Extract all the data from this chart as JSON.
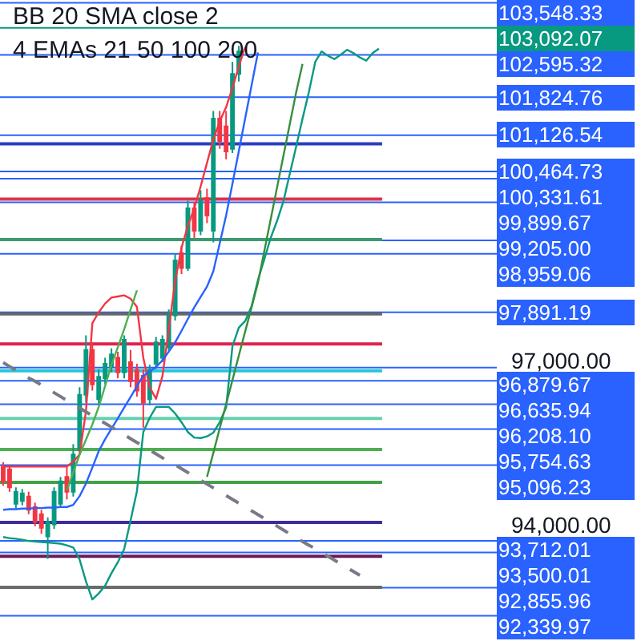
{
  "chart_data": {
    "type": "candlestick",
    "categories": [
      null,
      null,
      null,
      null,
      null,
      null,
      null,
      null,
      null,
      null,
      null,
      null,
      null,
      null,
      null,
      null,
      null,
      null,
      null,
      null,
      null,
      null,
      null,
      null,
      null,
      null,
      null,
      null,
      null,
      null,
      null,
      null,
      null,
      null,
      null,
      null,
      null,
      null,
      null,
      null,
      null,
      null,
      null,
      null,
      null,
      null,
      null,
      null,
      null,
      null,
      null,
      null,
      null,
      null,
      null,
      null,
      null,
      null,
      null,
      null
    ],
    "ohlc": [
      [
        95070,
        95150,
        94720,
        94800
      ],
      [
        95020,
        95070,
        94610,
        94690
      ],
      [
        94390,
        94690,
        94300,
        94610
      ],
      [
        94440,
        94660,
        94360,
        94580
      ],
      [
        94520,
        94610,
        94200,
        94280
      ],
      [
        94330,
        94410,
        93980,
        94060
      ],
      [
        94200,
        94280,
        93840,
        93950
      ],
      [
        93790,
        94140,
        93380,
        94060
      ],
      [
        94010,
        94690,
        93930,
        94610
      ],
      [
        94390,
        94880,
        94330,
        94800
      ],
      [
        94880,
        95070,
        94470,
        94610
      ],
      [
        94610,
        95480,
        94520,
        95290
      ],
      [
        95370,
        96520,
        95290,
        96380
      ],
      [
        96380,
        97470,
        96240,
        97200
      ],
      [
        97200,
        97340,
        96460,
        96570
      ],
      [
        96300,
        96850,
        96190,
        96710
      ],
      [
        96680,
        97060,
        96570,
        96950
      ],
      [
        96900,
        97230,
        96790,
        97120
      ],
      [
        97060,
        97170,
        96680,
        96790
      ],
      [
        96790,
        97470,
        96680,
        97390
      ],
      [
        96980,
        97200,
        96520,
        96630
      ],
      [
        96840,
        96950,
        96350,
        96460
      ],
      [
        96730,
        96850,
        95780,
        96240
      ],
      [
        96300,
        96930,
        96190,
        96840
      ],
      [
        96950,
        97440,
        96850,
        97340
      ],
      [
        97060,
        97470,
        96980,
        97390
      ],
      [
        97250,
        97940,
        97170,
        97830
      ],
      [
        97830,
        98970,
        97740,
        98840
      ],
      [
        98970,
        99110,
        98590,
        98700
      ],
      [
        98700,
        99930,
        98650,
        99790
      ],
      [
        99790,
        99900,
        99250,
        99380
      ],
      [
        99380,
        100120,
        99300,
        99930
      ],
      [
        99980,
        100150,
        99520,
        99660
      ],
      [
        99380,
        101570,
        99170,
        101430
      ],
      [
        101430,
        101570,
        100880,
        101020
      ],
      [
        101290,
        101570,
        100690,
        100830
      ],
      [
        100880,
        102470,
        100800,
        102250
      ],
      [
        102250,
        102760,
        102110,
        102660
      ],
      null,
      null,
      null,
      null,
      null,
      null,
      null,
      null,
      null,
      null,
      null,
      null,
      null,
      null,
      null,
      null,
      null,
      null,
      null,
      null,
      null,
      null
    ],
    "colors": [
      "#f23645",
      "#f23645",
      "#089981",
      "#089981",
      "#f23645",
      "#f23645",
      "#f23645",
      "#089981",
      "#089981",
      "#089981",
      "#f23645",
      "#089981",
      "#089981",
      "#089981",
      "#f23645",
      "#089981",
      "#089981",
      "#089981",
      "#f23645",
      "#089981",
      "#f23645",
      "#f23645",
      "#f23645",
      "#089981",
      "#089981",
      "#089981",
      "#089981",
      "#089981",
      "#f23645",
      "#089981",
      "#f23645",
      "#089981",
      "#f23645",
      "#089981",
      "#f23645",
      "#f23645",
      "#089981",
      "#089981",
      null,
      null,
      null,
      null,
      null,
      null,
      null,
      null,
      null,
      null,
      null,
      null,
      null,
      null,
      null,
      null,
      null,
      null,
      null,
      null,
      null,
      null
    ],
    "series": [
      {
        "type": "line",
        "color": "#f23645",
        "values": [
          95070,
          95070,
          95070,
          95070,
          95070,
          95070,
          95070,
          95070,
          95070,
          95070,
          95070,
          95160,
          95290,
          96080,
          97690,
          97890,
          98050,
          98160,
          98180,
          98200,
          98140,
          97990,
          97060,
          96520,
          96310,
          96720,
          97580,
          98460,
          99070,
          99470,
          99790,
          100190,
          100620,
          101050,
          101380,
          101640,
          101990,
          102390,
          102740,
          null,
          null,
          null,
          null,
          null,
          null,
          null,
          null,
          null,
          null,
          null,
          null,
          null,
          null,
          null,
          null,
          null,
          null,
          null,
          null,
          null
        ]
      },
      {
        "type": "line",
        "color": "#2962ff",
        "values": [
          94280,
          94290,
          94290,
          94300,
          94300,
          94310,
          94310,
          94320,
          94320,
          94330,
          94330,
          94370,
          94530,
          94760,
          95050,
          95350,
          95570,
          95760,
          95950,
          96150,
          96340,
          96540,
          96730,
          96810,
          96890,
          97010,
          97170,
          97340,
          97550,
          97770,
          97980,
          98170,
          98360,
          98640,
          99150,
          99660,
          100240,
          100840,
          101440,
          102040,
          102640,
          null,
          null,
          null,
          null,
          null,
          null,
          null,
          null,
          null,
          null,
          null,
          null,
          null,
          null,
          null,
          null,
          null,
          null,
          null
        ]
      },
      {
        "type": "line",
        "color": "#089981",
        "values": [
          93780,
          93760,
          93750,
          93730,
          93710,
          93700,
          93690,
          93680,
          93670,
          93660,
          93630,
          93590,
          93370,
          92970,
          92640,
          92750,
          92890,
          93120,
          93320,
          93560,
          94080,
          94620,
          95700,
          95960,
          96160,
          96160,
          96160,
          96040,
          95880,
          95700,
          95600,
          95590,
          95620,
          95690,
          95880,
          96150,
          97270,
          97610,
          97730,
          98000,
          98480,
          98860,
          99250,
          99560,
          99920,
          100420,
          100920,
          101430,
          101920,
          102470,
          102660,
          102580,
          102520,
          102600,
          102690,
          102630,
          102550,
          102490,
          102630,
          102710
        ]
      },
      {
        "type": "line",
        "color": "#4caf50",
        "values": [
          null,
          null,
          null,
          null,
          null,
          null,
          null,
          null,
          null,
          null,
          94640,
          94960,
          95290,
          95560,
          95840,
          96160,
          96540,
          96930,
          97250,
          97580,
          97940,
          98290,
          null,
          null,
          null,
          null,
          null,
          null,
          null,
          null,
          null,
          null,
          null,
          null,
          null,
          null,
          null,
          null,
          null,
          null,
          null,
          null,
          null,
          null,
          null,
          null,
          null,
          null,
          null,
          null,
          null,
          null,
          null,
          null,
          null,
          null,
          null,
          null,
          null,
          null
        ]
      },
      {
        "type": "line",
        "color": "#388e3c",
        "values": [
          null,
          null,
          null,
          null,
          null,
          null,
          null,
          null,
          null,
          null,
          null,
          null,
          null,
          null,
          null,
          null,
          null,
          null,
          null,
          null,
          null,
          null,
          null,
          null,
          null,
          null,
          null,
          null,
          null,
          null,
          null,
          null,
          94880,
          95320,
          95770,
          96210,
          96650,
          97100,
          97540,
          97980,
          98430,
          99010,
          99590,
          100170,
          100750,
          101330,
          101910,
          102430,
          null,
          null,
          null,
          null,
          null,
          null,
          null,
          null,
          null,
          null,
          null,
          null
        ]
      },
      {
        "type": "line",
        "color": "#787b86",
        "line_style": "dashed",
        "values": [
          96970,
          96900,
          96830,
          96760,
          96690,
          96630,
          96560,
          96490,
          96420,
          96350,
          96280,
          96210,
          96140,
          96070,
          96000,
          95930,
          95860,
          95790,
          95720,
          95650,
          95580,
          95510,
          95440,
          95370,
          95300,
          95230,
          95160,
          95100,
          95030,
          94960,
          94890,
          94820,
          94750,
          94680,
          94610,
          94540,
          94470,
          94400,
          94330,
          94260,
          94190,
          94120,
          94050,
          93980,
          93910,
          93840,
          93770,
          93700,
          93630,
          93570,
          93500,
          93430,
          93360,
          93290,
          93220,
          93150,
          93080,
          null,
          null,
          null
        ]
      }
    ],
    "ref_lines": [
      {
        "axis": "y",
        "value": 103548.33,
        "label": "103,548.33",
        "color": "#2962ff"
      },
      {
        "axis": "y",
        "value": 103092.07,
        "label": "103,092.07",
        "color": "#089981"
      },
      {
        "axis": "y",
        "value": 102595.32,
        "label": "102,595.32",
        "color": "#2962ff"
      },
      {
        "axis": "y",
        "value": 101824.76,
        "label": "101,824.76",
        "color": "#2962ff"
      },
      {
        "axis": "y",
        "value": 101126.54,
        "label": "101,126.54",
        "color": "#2962ff"
      },
      {
        "axis": "y",
        "value": 100464.73,
        "label": "100,464.73",
        "color": "#2962ff"
      },
      {
        "axis": "y",
        "value": 100331.61,
        "label": "100,331.61",
        "color": "#2962ff"
      },
      {
        "axis": "y",
        "value": 99899.67,
        "label": "99,899.67",
        "color": "#2962ff"
      },
      {
        "axis": "y",
        "value": 99205.0,
        "label": "99,205.00",
        "color": "#2962ff"
      },
      {
        "axis": "y",
        "value": 98959.06,
        "label": "98,959.06",
        "color": "#2962ff"
      },
      {
        "axis": "y",
        "value": 97891.19,
        "label": "97,891.19",
        "color": "#2962ff"
      },
      {
        "axis": "y",
        "value": 96879.67,
        "label": "96,879.67",
        "color": "#2962ff"
      },
      {
        "axis": "y",
        "value": 96635.94,
        "label": "96,635.94",
        "color": "#2962ff"
      },
      {
        "axis": "y",
        "value": 96208.1,
        "label": "96,208.10",
        "color": "#2962ff"
      },
      {
        "axis": "y",
        "value": 95754.63,
        "label": "95,754.63",
        "color": "#2962ff"
      },
      {
        "axis": "y",
        "value": 95096.23,
        "label": "95,096.23",
        "color": "#2962ff"
      },
      {
        "axis": "y",
        "value": 93712.01,
        "label": "93,712.01",
        "color": "#2962ff"
      },
      {
        "axis": "y",
        "value": 93500.01,
        "label": "93,500.01",
        "color": "#2962ff"
      },
      {
        "axis": "y",
        "value": 92855.96,
        "label": "92,855.96",
        "color": "#2962ff"
      },
      {
        "axis": "y",
        "value": 92339.97,
        "label": "92,339.97",
        "color": "#2962ff"
      },
      {
        "axis": "y",
        "value": 100970,
        "color": "#2a3fbf"
      },
      {
        "axis": "y",
        "value": 99960,
        "color": "#e0314b"
      },
      {
        "axis": "y",
        "value": 99220,
        "color": "#3d9a6e"
      },
      {
        "axis": "y",
        "value": 97860,
        "color": "#666666"
      },
      {
        "axis": "y",
        "value": 97310,
        "color": "#e0244f"
      },
      {
        "axis": "y",
        "value": 96820,
        "color": "#26c6da"
      },
      {
        "axis": "y",
        "value": 95950,
        "color": "#66d1b0"
      },
      {
        "axis": "y",
        "value": 95380,
        "color": "#4caf50"
      },
      {
        "axis": "y",
        "value": 94780,
        "color": "#43a047"
      },
      {
        "axis": "y",
        "value": 94050,
        "color": "#3f2a9c"
      },
      {
        "axis": "y",
        "value": 93430,
        "color": "#6a1b5a"
      },
      {
        "axis": "y",
        "value": 92860,
        "color": "#6b6b6b"
      }
    ],
    "ylim": [
      91880,
      103600
    ],
    "yticks": [
      {
        "value": 94000,
        "label": "94,000.00"
      },
      {
        "value": 97000,
        "label": "97,000.00"
      }
    ],
    "tick_labels": "y",
    "annotations": [
      "BB 20 SMA close 2",
      "4 EMAs 21 50 100 200"
    ]
  }
}
